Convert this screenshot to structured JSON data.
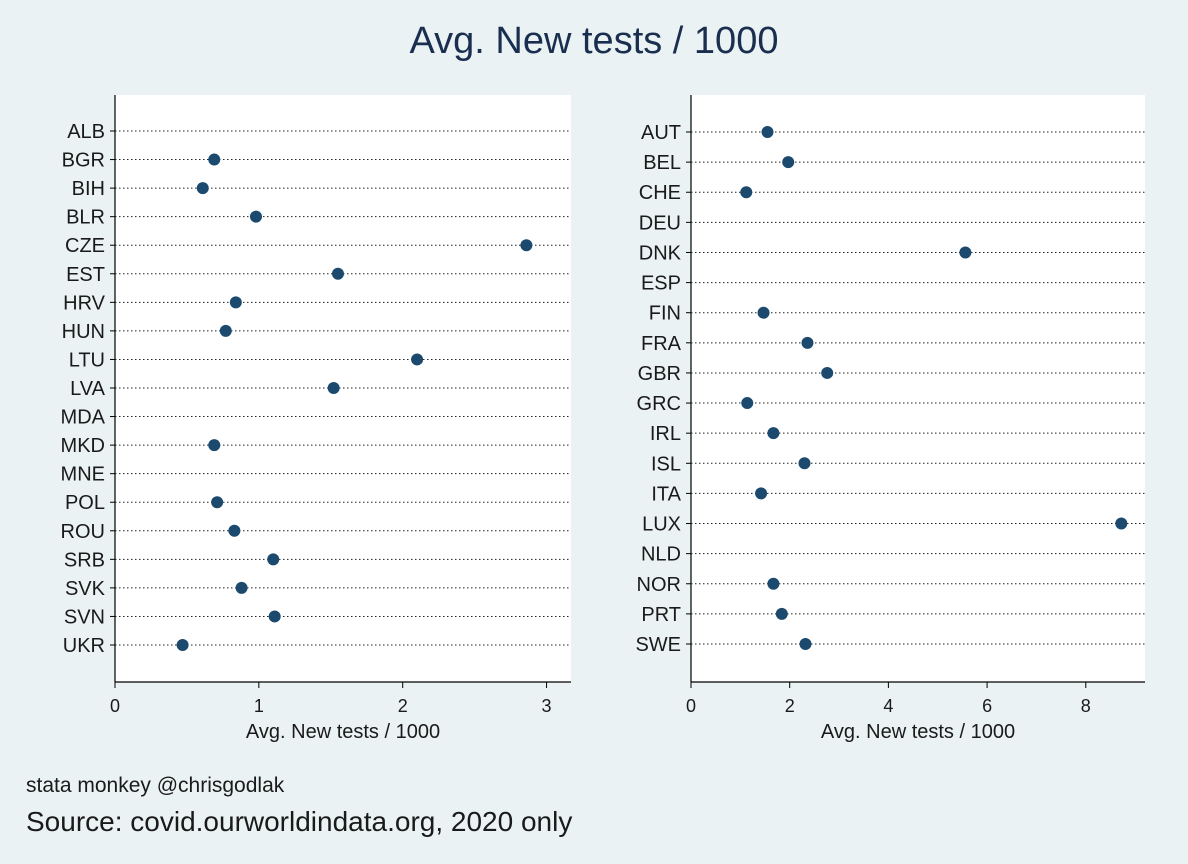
{
  "figure": {
    "title": "Avg. New tests / 1000",
    "credit": "stata monkey @chrisgodlak",
    "source": "Source: covid.ourworldindata.org, 2020 only",
    "marker_color": "#1c4a6e",
    "background_color": "#eaf2f3",
    "plot_background_color": "#ffffff"
  },
  "chart_data": [
    {
      "type": "scatter",
      "subtype": "dot-plot",
      "xlabel": "Avg. New tests / 1000",
      "xlim": [
        0,
        3.17
      ],
      "xticks": [
        0,
        1,
        2,
        3
      ],
      "grid": "dotted horizontal",
      "categories": [
        "ALB",
        "BGR",
        "BIH",
        "BLR",
        "CZE",
        "EST",
        "HRV",
        "HUN",
        "LTU",
        "LVA",
        "MDA",
        "MKD",
        "MNE",
        "POL",
        "ROU",
        "SRB",
        "SVK",
        "SVN",
        "UKR"
      ],
      "values": [
        null,
        0.69,
        0.61,
        0.98,
        2.86,
        1.55,
        0.84,
        0.77,
        2.1,
        1.52,
        null,
        0.69,
        null,
        0.71,
        0.83,
        1.1,
        0.88,
        1.11,
        0.47
      ]
    },
    {
      "type": "scatter",
      "subtype": "dot-plot",
      "xlabel": "Avg. New tests / 1000",
      "xlim": [
        0,
        9.2
      ],
      "xticks": [
        0,
        2,
        4,
        6,
        8
      ],
      "grid": "dotted horizontal",
      "categories": [
        "AUT",
        "BEL",
        "CHE",
        "DEU",
        "DNK",
        "ESP",
        "FIN",
        "FRA",
        "GBR",
        "GRC",
        "IRL",
        "ISL",
        "ITA",
        "LUX",
        "NLD",
        "NOR",
        "PRT",
        "SWE"
      ],
      "values": [
        1.55,
        1.97,
        1.12,
        null,
        5.56,
        null,
        1.47,
        2.36,
        2.76,
        1.14,
        1.67,
        2.3,
        1.42,
        8.72,
        null,
        1.67,
        1.84,
        2.32
      ]
    }
  ]
}
